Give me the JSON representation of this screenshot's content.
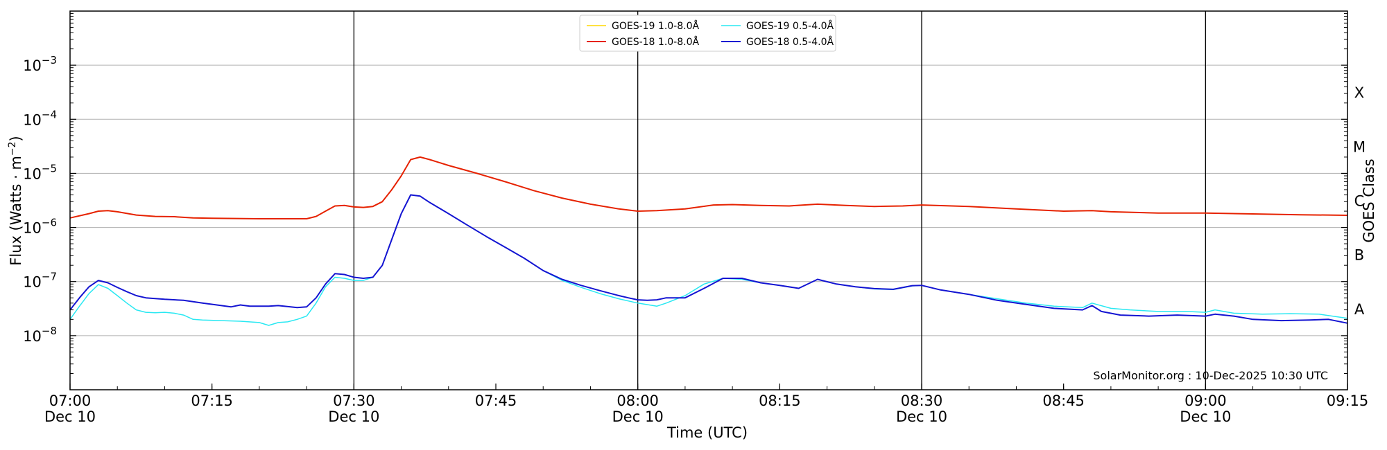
{
  "chart_data": {
    "type": "line",
    "xlabel": "Time (UTC)",
    "ylabel": "Flux (Watts · m",
    "ylabel_sup": "−2",
    "ylabel_end": ")",
    "right_label": "GOES Class",
    "watermark": "SolarMonitor.org : 10-Dec-2025 10:30 UTC",
    "y_scale": "log",
    "ylim": [
      1e-09,
      0.01
    ],
    "xlim": [
      "07:00",
      "09:15"
    ],
    "grid": "horizontal",
    "legend_position": "top-center",
    "y_ticks": [
      {
        "value": 1e-08,
        "base": "10",
        "exp": "−8"
      },
      {
        "value": 1e-07,
        "base": "10",
        "exp": "−7"
      },
      {
        "value": 1e-06,
        "base": "10",
        "exp": "−6"
      },
      {
        "value": 1e-05,
        "base": "10",
        "exp": "−5"
      },
      {
        "value": 0.0001,
        "base": "10",
        "exp": "−4"
      },
      {
        "value": 0.001,
        "base": "10",
        "exp": "−3"
      }
    ],
    "x_ticks": [
      {
        "time": "07:00",
        "label": "07:00",
        "sub": "Dec 10"
      },
      {
        "time": "07:15",
        "label": "07:15",
        "sub": ""
      },
      {
        "time": "07:30",
        "label": "07:30",
        "sub": "Dec 10"
      },
      {
        "time": "07:45",
        "label": "07:45",
        "sub": ""
      },
      {
        "time": "08:00",
        "label": "08:00",
        "sub": "Dec 10"
      },
      {
        "time": "08:15",
        "label": "08:15",
        "sub": ""
      },
      {
        "time": "08:30",
        "label": "08:30",
        "sub": "Dec 10"
      },
      {
        "time": "08:45",
        "label": "08:45",
        "sub": ""
      },
      {
        "time": "09:00",
        "label": "09:00",
        "sub": "Dec 10"
      },
      {
        "time": "09:15",
        "label": "09:15",
        "sub": ""
      }
    ],
    "vertical_lines": [
      "07:30",
      "08:00",
      "08:30",
      "09:00"
    ],
    "classes": [
      {
        "label": "A",
        "value": 1e-08
      },
      {
        "label": "B",
        "value": 1e-07
      },
      {
        "label": "C",
        "value": 1e-06
      },
      {
        "label": "M",
        "value": 1e-05
      },
      {
        "label": "X",
        "value": 0.0001
      }
    ],
    "series": [
      {
        "name": "GOES-19 1.0-8.0Å",
        "color": "#ffd700",
        "width": 1.5,
        "points": []
      },
      {
        "name": "GOES-18 1.0-8.0Å",
        "color": "#e62200",
        "width": 2,
        "points": [
          [
            "07:00",
            1.5e-06
          ],
          [
            "07:02",
            1.8e-06
          ],
          [
            "07:03",
            2e-06
          ],
          [
            "07:04",
            2.05e-06
          ],
          [
            "07:05",
            1.95e-06
          ],
          [
            "07:07",
            1.7e-06
          ],
          [
            "07:09",
            1.6e-06
          ],
          [
            "07:11",
            1.58e-06
          ],
          [
            "07:13",
            1.5e-06
          ],
          [
            "07:15",
            1.48e-06
          ],
          [
            "07:20",
            1.45e-06
          ],
          [
            "07:25",
            1.45e-06
          ],
          [
            "07:26",
            1.6e-06
          ],
          [
            "07:27",
            2e-06
          ],
          [
            "07:28",
            2.5e-06
          ],
          [
            "07:29",
            2.55e-06
          ],
          [
            "07:30",
            2.4e-06
          ],
          [
            "07:31",
            2.35e-06
          ],
          [
            "07:32",
            2.45e-06
          ],
          [
            "07:33",
            3e-06
          ],
          [
            "07:34",
            5e-06
          ],
          [
            "07:35",
            9e-06
          ],
          [
            "07:36",
            1.8e-05
          ],
          [
            "07:37",
            2e-05
          ],
          [
            "07:38",
            1.8e-05
          ],
          [
            "07:40",
            1.4e-05
          ],
          [
            "07:43",
            1e-05
          ],
          [
            "07:46",
            7e-06
          ],
          [
            "07:49",
            4.8e-06
          ],
          [
            "07:52",
            3.5e-06
          ],
          [
            "07:55",
            2.7e-06
          ],
          [
            "07:58",
            2.2e-06
          ],
          [
            "08:00",
            2e-06
          ],
          [
            "08:02",
            2.05e-06
          ],
          [
            "08:05",
            2.2e-06
          ],
          [
            "08:08",
            2.6e-06
          ],
          [
            "08:10",
            2.65e-06
          ],
          [
            "08:13",
            2.55e-06
          ],
          [
            "08:16",
            2.5e-06
          ],
          [
            "08:19",
            2.7e-06
          ],
          [
            "08:22",
            2.55e-06
          ],
          [
            "08:25",
            2.45e-06
          ],
          [
            "08:28",
            2.5e-06
          ],
          [
            "08:30",
            2.6e-06
          ],
          [
            "08:35",
            2.45e-06
          ],
          [
            "08:40",
            2.2e-06
          ],
          [
            "08:45",
            2e-06
          ],
          [
            "08:48",
            2.05e-06
          ],
          [
            "08:50",
            1.95e-06
          ],
          [
            "08:55",
            1.85e-06
          ],
          [
            "09:00",
            1.85e-06
          ],
          [
            "09:05",
            1.78e-06
          ],
          [
            "09:10",
            1.72e-06
          ],
          [
            "09:15",
            1.68e-06
          ]
        ]
      },
      {
        "name": "GOES-19 0.5-4.0Å",
        "color": "#29e8f2",
        "width": 1.5,
        "points": [
          [
            "07:00",
            2e-08
          ],
          [
            "07:01",
            3.5e-08
          ],
          [
            "07:02",
            6e-08
          ],
          [
            "07:03",
            8.8e-08
          ],
          [
            "07:04",
            7.5e-08
          ],
          [
            "07:05",
            5.5e-08
          ],
          [
            "07:06",
            4e-08
          ],
          [
            "07:07",
            3e-08
          ],
          [
            "07:08",
            2.7e-08
          ],
          [
            "07:09",
            2.65e-08
          ],
          [
            "07:10",
            2.7e-08
          ],
          [
            "07:11",
            2.6e-08
          ],
          [
            "07:12",
            2.4e-08
          ],
          [
            "07:13",
            2e-08
          ],
          [
            "07:14",
            1.95e-08
          ],
          [
            "07:16",
            1.9e-08
          ],
          [
            "07:18",
            1.85e-08
          ],
          [
            "07:20",
            1.75e-08
          ],
          [
            "07:21",
            1.55e-08
          ],
          [
            "07:22",
            1.75e-08
          ],
          [
            "07:23",
            1.8e-08
          ],
          [
            "07:24",
            2e-08
          ],
          [
            "07:25",
            2.3e-08
          ],
          [
            "07:26",
            4e-08
          ],
          [
            "07:27",
            8e-08
          ],
          [
            "07:28",
            1.2e-07
          ],
          [
            "07:29",
            1.15e-07
          ],
          [
            "07:30",
            1.05e-07
          ],
          [
            "07:31",
            1.05e-07
          ],
          [
            "07:32",
            1.2e-07
          ],
          [
            "07:33",
            2e-07
          ],
          [
            "07:34",
            6e-07
          ],
          [
            "07:35",
            1.8e-06
          ],
          [
            "07:36",
            4e-06
          ],
          [
            "07:37",
            3.8e-06
          ],
          [
            "07:38",
            2.9e-06
          ],
          [
            "07:40",
            1.8e-06
          ],
          [
            "07:42",
            1.1e-06
          ],
          [
            "07:44",
            6.8e-07
          ],
          [
            "07:46",
            4.3e-07
          ],
          [
            "07:48",
            2.7e-07
          ],
          [
            "07:50",
            1.6e-07
          ],
          [
            "07:52",
            1.05e-07
          ],
          [
            "07:54",
            7.8e-08
          ],
          [
            "07:56",
            6e-08
          ],
          [
            "07:58",
            4.8e-08
          ],
          [
            "08:00",
            4e-08
          ],
          [
            "08:02",
            3.5e-08
          ],
          [
            "08:03",
            4e-08
          ],
          [
            "08:05",
            5.5e-08
          ],
          [
            "08:07",
            9e-08
          ],
          [
            "08:09",
            1.15e-07
          ],
          [
            "08:11",
            1.1e-07
          ],
          [
            "08:13",
            9.5e-08
          ],
          [
            "08:15",
            8.5e-08
          ],
          [
            "08:17",
            7.5e-08
          ],
          [
            "08:19",
            1.1e-07
          ],
          [
            "08:21",
            9e-08
          ],
          [
            "08:23",
            8e-08
          ],
          [
            "08:25",
            7.3e-08
          ],
          [
            "08:27",
            7.1e-08
          ],
          [
            "08:29",
            8.3e-08
          ],
          [
            "08:30",
            8.5e-08
          ],
          [
            "08:32",
            7e-08
          ],
          [
            "08:35",
            5.8e-08
          ],
          [
            "08:38",
            4.8e-08
          ],
          [
            "08:41",
            4e-08
          ],
          [
            "08:44",
            3.5e-08
          ],
          [
            "08:47",
            3.3e-08
          ],
          [
            "08:48",
            4e-08
          ],
          [
            "08:50",
            3.2e-08
          ],
          [
            "08:52",
            3e-08
          ],
          [
            "08:55",
            2.8e-08
          ],
          [
            "08:58",
            2.8e-08
          ],
          [
            "09:00",
            2.7e-08
          ],
          [
            "09:01",
            3e-08
          ],
          [
            "09:03",
            2.6e-08
          ],
          [
            "09:06",
            2.5e-08
          ],
          [
            "09:09",
            2.55e-08
          ],
          [
            "09:12",
            2.5e-08
          ],
          [
            "09:15",
            2.1e-08
          ]
        ]
      },
      {
        "name": "GOES-18 0.5-4.0Å",
        "color": "#1414d2",
        "width": 2,
        "points": [
          [
            "07:00",
            3e-08
          ],
          [
            "07:01",
            5e-08
          ],
          [
            "07:02",
            8e-08
          ],
          [
            "07:03",
            1.05e-07
          ],
          [
            "07:04",
            9.5e-08
          ],
          [
            "07:05",
            7.8e-08
          ],
          [
            "07:06",
            6.5e-08
          ],
          [
            "07:07",
            5.5e-08
          ],
          [
            "07:08",
            5e-08
          ],
          [
            "07:10",
            4.7e-08
          ],
          [
            "07:12",
            4.5e-08
          ],
          [
            "07:14",
            4e-08
          ],
          [
            "07:16",
            3.6e-08
          ],
          [
            "07:17",
            3.4e-08
          ],
          [
            "07:18",
            3.7e-08
          ],
          [
            "07:19",
            3.5e-08
          ],
          [
            "07:21",
            3.5e-08
          ],
          [
            "07:22",
            3.6e-08
          ],
          [
            "07:24",
            3.3e-08
          ],
          [
            "07:25",
            3.4e-08
          ],
          [
            "07:26",
            5e-08
          ],
          [
            "07:27",
            9e-08
          ],
          [
            "07:28",
            1.4e-07
          ],
          [
            "07:29",
            1.35e-07
          ],
          [
            "07:30",
            1.2e-07
          ],
          [
            "07:31",
            1.15e-07
          ],
          [
            "07:32",
            1.2e-07
          ],
          [
            "07:33",
            2e-07
          ],
          [
            "07:34",
            6e-07
          ],
          [
            "07:35",
            1.8e-06
          ],
          [
            "07:36",
            4e-06
          ],
          [
            "07:37",
            3.8e-06
          ],
          [
            "07:38",
            2.9e-06
          ],
          [
            "07:40",
            1.8e-06
          ],
          [
            "07:42",
            1.1e-06
          ],
          [
            "07:44",
            6.8e-07
          ],
          [
            "07:46",
            4.3e-07
          ],
          [
            "07:48",
            2.7e-07
          ],
          [
            "07:50",
            1.6e-07
          ],
          [
            "07:52",
            1.1e-07
          ],
          [
            "07:54",
            8.5e-08
          ],
          [
            "07:56",
            6.8e-08
          ],
          [
            "07:58",
            5.5e-08
          ],
          [
            "07:59",
            5e-08
          ],
          [
            "08:00",
            4.6e-08
          ],
          [
            "08:01",
            4.5e-08
          ],
          [
            "08:02",
            4.6e-08
          ],
          [
            "08:03",
            5e-08
          ],
          [
            "08:05",
            5e-08
          ],
          [
            "08:07",
            7.5e-08
          ],
          [
            "08:09",
            1.15e-07
          ],
          [
            "08:11",
            1.15e-07
          ],
          [
            "08:13",
            9.5e-08
          ],
          [
            "08:15",
            8.5e-08
          ],
          [
            "08:17",
            7.5e-08
          ],
          [
            "08:19",
            1.1e-07
          ],
          [
            "08:21",
            9e-08
          ],
          [
            "08:23",
            8e-08
          ],
          [
            "08:25",
            7.4e-08
          ],
          [
            "08:27",
            7.2e-08
          ],
          [
            "08:29",
            8.4e-08
          ],
          [
            "08:30",
            8.5e-08
          ],
          [
            "08:32",
            7e-08
          ],
          [
            "08:35",
            5.8e-08
          ],
          [
            "08:38",
            4.5e-08
          ],
          [
            "08:41",
            3.8e-08
          ],
          [
            "08:44",
            3.2e-08
          ],
          [
            "08:47",
            3e-08
          ],
          [
            "08:48",
            3.6e-08
          ],
          [
            "08:49",
            2.8e-08
          ],
          [
            "08:51",
            2.4e-08
          ],
          [
            "08:54",
            2.3e-08
          ],
          [
            "08:57",
            2.4e-08
          ],
          [
            "09:00",
            2.3e-08
          ],
          [
            "09:01",
            2.5e-08
          ],
          [
            "09:03",
            2.3e-08
          ],
          [
            "09:05",
            2e-08
          ],
          [
            "09:08",
            1.9e-08
          ],
          [
            "09:11",
            1.95e-08
          ],
          [
            "09:13",
            2e-08
          ],
          [
            "09:15",
            1.7e-08
          ]
        ]
      }
    ]
  }
}
